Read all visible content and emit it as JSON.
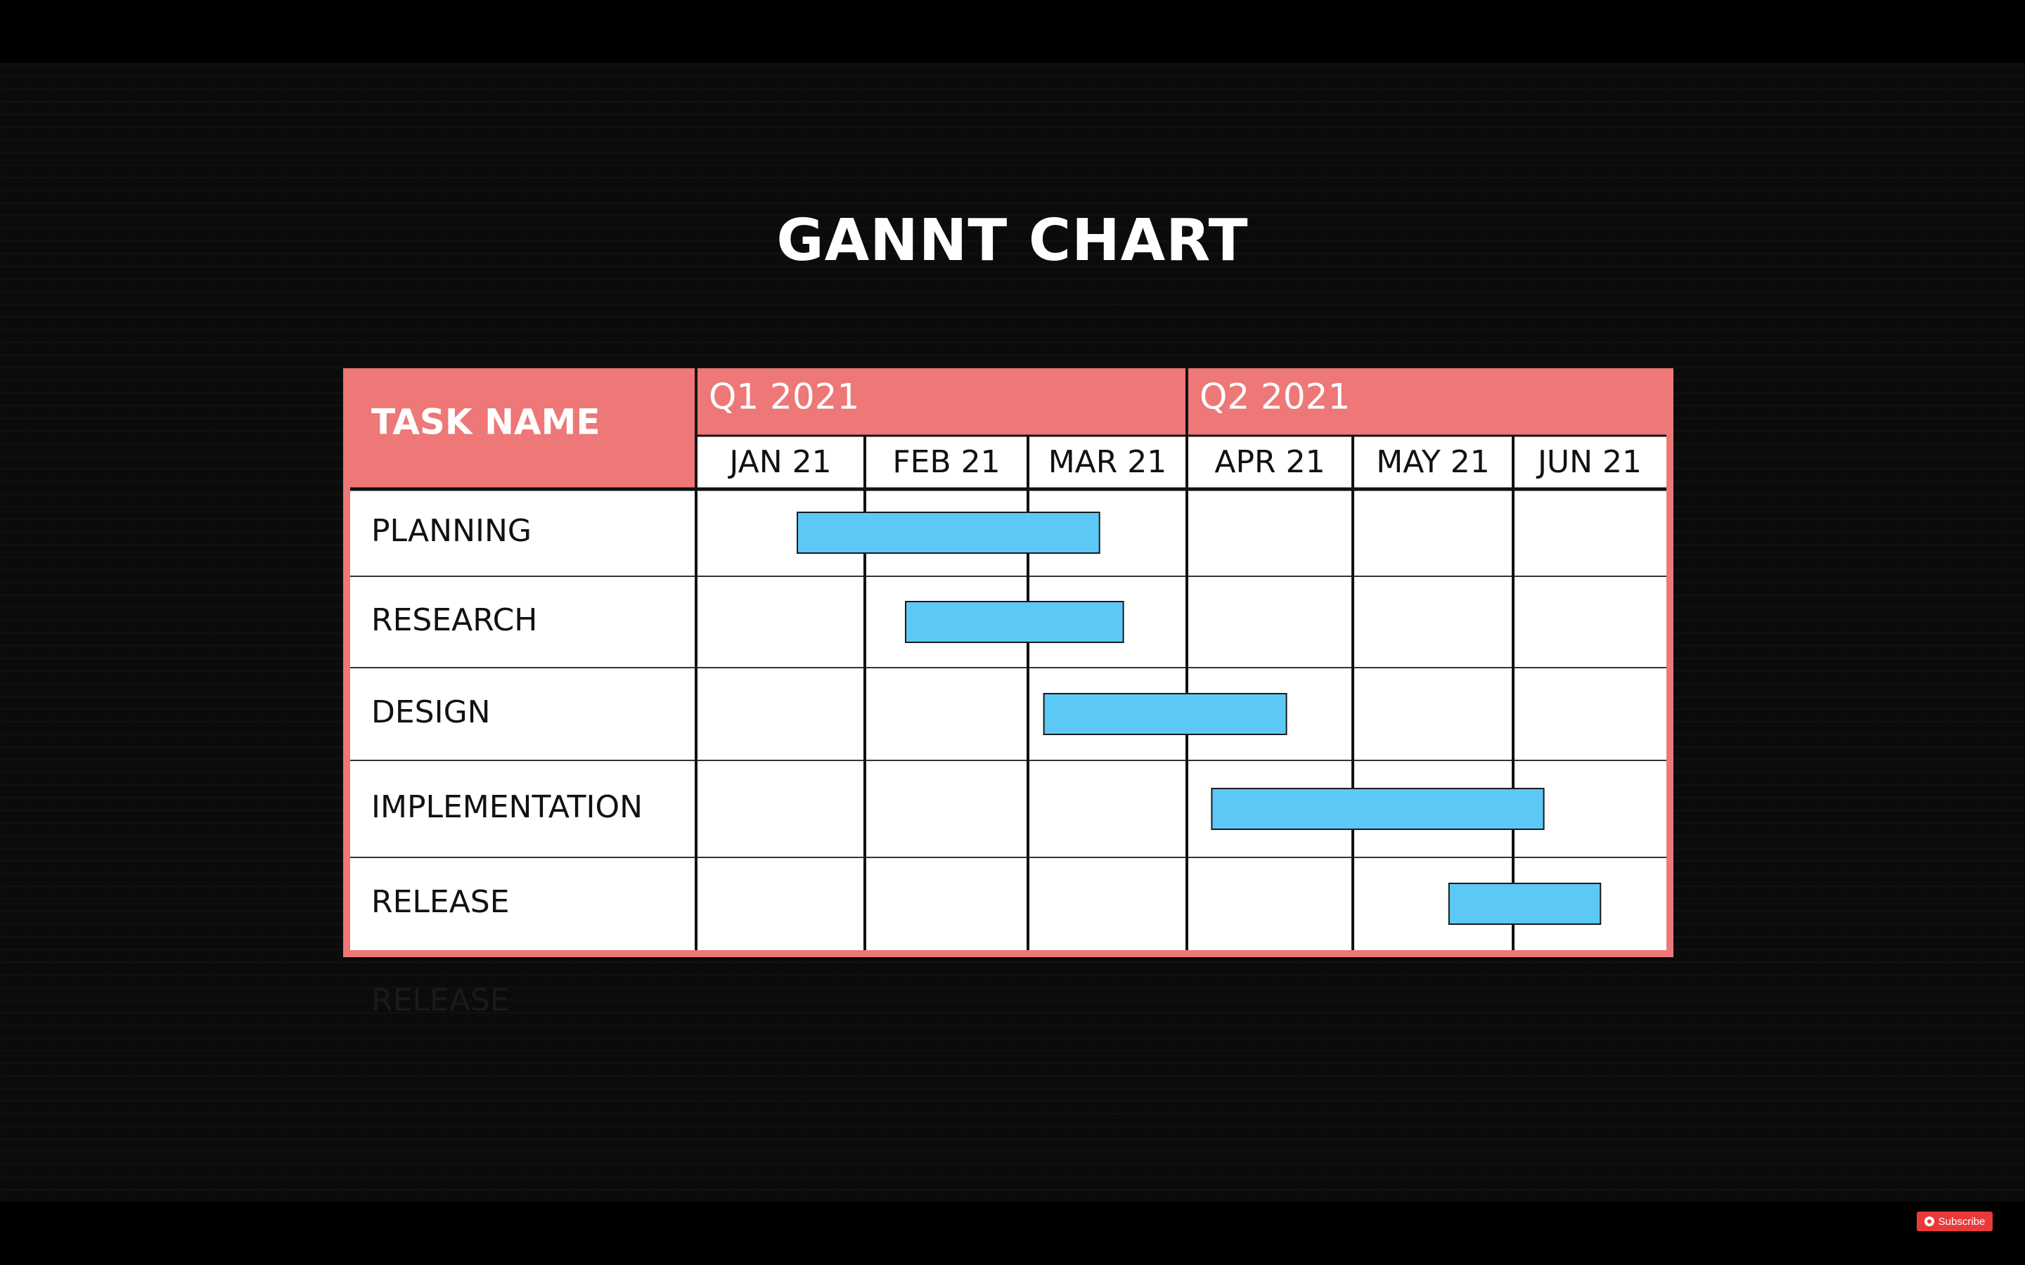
{
  "chart_data": {
    "type": "gantt",
    "title": "GANNT CHART",
    "header": {
      "task_column_label": "TASK NAME",
      "quarters": [
        {
          "label": "Q1 2021",
          "months": [
            "JAN 21",
            "FEB 21",
            "MAR 21"
          ]
        },
        {
          "label": "Q2 2021",
          "months": [
            "APR 21",
            "MAY 21",
            "JUN 21"
          ]
        }
      ]
    },
    "months": [
      "JAN 21",
      "FEB 21",
      "MAR 21",
      "APR 21",
      "MAY 21",
      "JUN 21"
    ],
    "tasks": [
      {
        "name": "PLANNING",
        "start_month": 0.6,
        "end_month": 2.45
      },
      {
        "name": "RESEARCH",
        "start_month": 1.25,
        "end_month": 2.6
      },
      {
        "name": "DESIGN",
        "start_month": 2.1,
        "end_month": 3.6
      },
      {
        "name": "IMPLEMENTATION",
        "start_month": 3.15,
        "end_month": 5.2
      },
      {
        "name": "RELEASE",
        "start_month": 4.6,
        "end_month": 5.57
      }
    ],
    "colors": {
      "header": "#ee7777",
      "bar": "#5bc8f5",
      "grid": "#111111",
      "background": "#ffffff"
    }
  },
  "overlay": {
    "ghost_label": "RELEASE",
    "subscribe_label": "Subscribe"
  }
}
